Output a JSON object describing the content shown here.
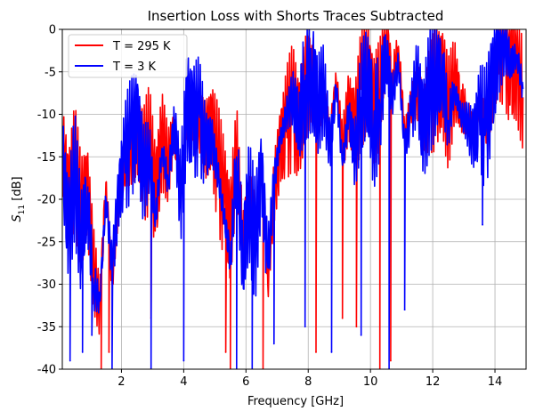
{
  "chart_data": {
    "type": "line",
    "title": "Insertion Loss with Shorts Traces Subtracted",
    "xlabel": "Frequency [GHz]",
    "ylabel_main": "S",
    "ylabel_sub": "11",
    "ylabel_unit": " [dB]",
    "xlim": [
      0.1,
      15
    ],
    "ylim": [
      -40,
      0
    ],
    "xticks": [
      2,
      4,
      6,
      8,
      10,
      12,
      14
    ],
    "yticks": [
      0,
      -5,
      -10,
      -15,
      -20,
      -25,
      -30,
      -35,
      -40
    ],
    "grid": true,
    "legend_position": "top-left",
    "series": [
      {
        "name": "T = 295 K",
        "color": "#ff0000",
        "x": [
          0.1,
          0.3,
          0.5,
          0.7,
          0.9,
          1.1,
          1.3,
          1.5,
          1.7,
          1.9,
          2.1,
          2.3,
          2.5,
          2.7,
          2.9,
          3.1,
          3.3,
          3.5,
          3.7,
          3.9,
          4.1,
          4.3,
          4.5,
          4.7,
          4.9,
          5.1,
          5.3,
          5.5,
          5.7,
          5.9,
          6.1,
          6.3,
          6.5,
          6.7,
          6.9,
          7.1,
          7.3,
          7.5,
          7.7,
          7.9,
          8.1,
          8.3,
          8.5,
          8.7,
          8.9,
          9.1,
          9.3,
          9.5,
          9.7,
          9.9,
          10.1,
          10.3,
          10.5,
          10.7,
          10.9,
          11.1,
          11.3,
          11.5,
          11.7,
          11.9,
          12.1,
          12.3,
          12.5,
          12.7,
          12.9,
          13.1,
          13.3,
          13.5,
          13.7,
          13.9,
          14.1,
          14.3,
          14.5,
          14.7,
          14.9
        ],
        "y": [
          -14,
          -20,
          -16,
          -22,
          -19,
          -28,
          -33,
          -18,
          -30,
          -21,
          -16,
          -14,
          -12,
          -16,
          -14,
          -20,
          -13,
          -16,
          -12,
          -19,
          -10,
          -12,
          -11,
          -13,
          -12,
          -16,
          -20,
          -24,
          -14,
          -25,
          -18,
          -22,
          -16,
          -30,
          -19,
          -14,
          -11,
          -9,
          -12,
          -7,
          -6,
          -10,
          -8,
          -12,
          -6,
          -14,
          -9,
          -12,
          -7,
          -5,
          -10,
          -7,
          -1,
          -6,
          -2,
          -12,
          -9,
          -7,
          -11,
          -8,
          -7,
          -6,
          -10,
          -6,
          -9,
          -10,
          -12,
          -9,
          -11,
          -8,
          -3,
          -2,
          -5,
          -4,
          -8
        ],
        "x_spikes": [
          1.35,
          1.6,
          2.95,
          5.35,
          5.5,
          6.55,
          8.25,
          9.1,
          9.55,
          10.3,
          10.65
        ],
        "y_spikes": [
          -40,
          -38,
          -34,
          -38,
          -40,
          -40,
          -38,
          -34,
          -35,
          -40,
          -39
        ]
      },
      {
        "name": "T = 3 K",
        "color": "#0000ff",
        "x": [
          0.1,
          0.3,
          0.5,
          0.7,
          0.9,
          1.1,
          1.3,
          1.5,
          1.7,
          1.9,
          2.1,
          2.3,
          2.5,
          2.7,
          2.9,
          3.1,
          3.3,
          3.5,
          3.7,
          3.9,
          4.1,
          4.3,
          4.5,
          4.7,
          4.9,
          5.1,
          5.3,
          5.5,
          5.7,
          5.9,
          6.1,
          6.3,
          6.5,
          6.7,
          6.9,
          7.1,
          7.3,
          7.5,
          7.7,
          7.9,
          8.1,
          8.3,
          8.5,
          8.7,
          8.9,
          9.1,
          9.3,
          9.5,
          9.7,
          9.9,
          10.1,
          10.3,
          10.5,
          10.7,
          10.9,
          11.1,
          11.3,
          11.5,
          11.7,
          11.9,
          12.1,
          12.3,
          12.5,
          12.7,
          12.9,
          13.1,
          13.3,
          13.5,
          13.7,
          13.9,
          14.1,
          14.3,
          14.5,
          14.7,
          14.9
        ],
        "y": [
          -15,
          -24,
          -17,
          -25,
          -20,
          -30,
          -32,
          -20,
          -28,
          -20,
          -15,
          -13,
          -11,
          -17,
          -15,
          -22,
          -14,
          -18,
          -11,
          -20,
          -9,
          -11,
          -10,
          -14,
          -13,
          -17,
          -22,
          -27,
          -15,
          -27,
          -20,
          -25,
          -17,
          -28,
          -18,
          -13,
          -10,
          -8,
          -11,
          -6,
          -5,
          -9,
          -7,
          -14,
          -7,
          -16,
          -10,
          -15,
          -8,
          -6,
          -12,
          -9,
          -3,
          -8,
          -4,
          -14,
          -10,
          -6,
          -12,
          -7,
          -6,
          -5,
          -11,
          -7,
          -10,
          -11,
          -13,
          -10,
          -12,
          -7,
          -2,
          -1,
          -4,
          -3,
          -7
        ],
        "x_spikes": [
          0.35,
          0.75,
          1.05,
          1.7,
          2.95,
          4.0,
          5.7,
          6.2,
          6.9,
          7.9,
          8.75,
          9.7,
          10.6,
          11.1,
          13.6
        ],
        "y_spikes": [
          -39,
          -38,
          -36,
          -40,
          -40,
          -39,
          -40,
          -40,
          -37,
          -35,
          -38,
          -36,
          -40,
          -33,
          -23
        ]
      }
    ]
  }
}
